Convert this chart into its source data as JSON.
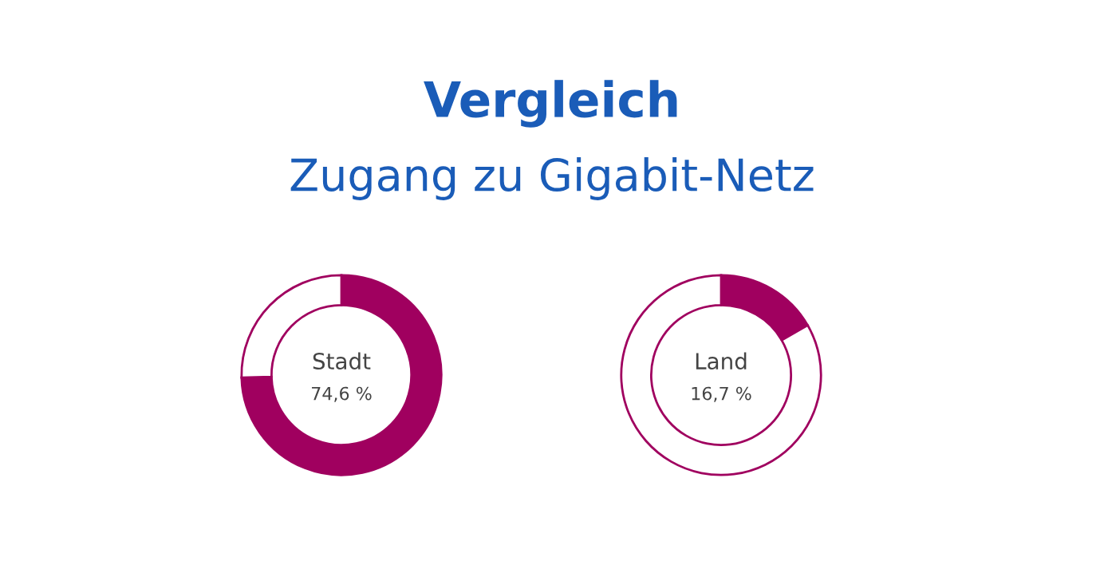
{
  "chart_data": [
    {
      "type": "donut",
      "title": "Vergleich",
      "subtitle": "Zugang zu Gigabit-Netz",
      "categories": [
        "Stadt",
        null
      ],
      "values": [
        74.6,
        25.4
      ],
      "colors": [
        "#a0005f",
        "#ffffff"
      ],
      "value_labels": [
        "74,6 %",
        null
      ]
    },
    {
      "type": "donut",
      "categories": [
        "Land",
        null
      ],
      "values": [
        16.7,
        83.3
      ],
      "colors": [
        "#a0005f",
        "#ffffff"
      ],
      "value_labels": [
        "16,7 %",
        null
      ]
    }
  ]
}
